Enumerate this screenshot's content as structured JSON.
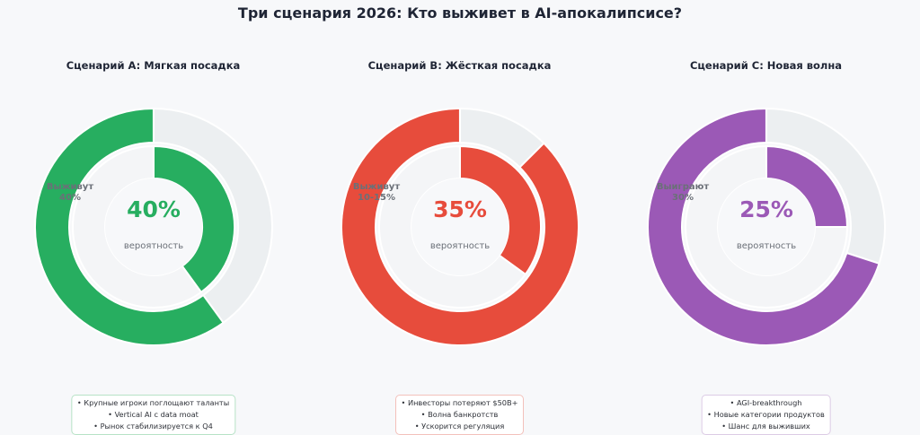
{
  "title": "Три сценария 2026: Кто выживет в AI-апокалипсисе?",
  "center_label": "вероятность",
  "track_color": "#eceff1",
  "chart_data": [
    {
      "type": "pie",
      "title": "Сценарий A: Мягкая посадка",
      "color": "#27ae60",
      "probability_label": "40%",
      "probability": 40,
      "outer_series": [
        {
          "name": "Выживут",
          "value": 40
        },
        {
          "name": "",
          "value": 60
        }
      ],
      "survive_label": [
        "Выживут",
        "40%"
      ],
      "notes": [
        "• Крупные игроки поглощают таланты",
        "• Vertical AI с data moat",
        "• Рынок стабилизируется к Q4"
      ],
      "note_border": "#b7e2c6"
    },
    {
      "type": "pie",
      "title": "Сценарий B: Жёсткая посадка",
      "color": "#e74c3c",
      "probability_label": "35%",
      "probability": 35,
      "outer_series": [
        {
          "name": "Выживут",
          "value": 12.5
        },
        {
          "name": "",
          "value": 87.5
        }
      ],
      "survive_label": [
        "Выживут",
        "10-15%"
      ],
      "notes": [
        "• Инвесторы потеряют $50B+",
        "• Волна банкротств",
        "• Ускорится регуляция"
      ],
      "note_border": "#f3c1bb"
    },
    {
      "type": "pie",
      "title": "Сценарий C: Новая волна",
      "color": "#9b59b6",
      "probability_label": "25%",
      "probability": 25,
      "outer_series": [
        {
          "name": "Выиграют",
          "value": 30
        },
        {
          "name": "",
          "value": 70
        }
      ],
      "survive_label": [
        "Выиграют",
        "30%"
      ],
      "notes": [
        "• AGI-breakthrough",
        "• Новые категории продуктов",
        "• Шанс для выживших"
      ],
      "note_border": "#dccbe5"
    }
  ]
}
